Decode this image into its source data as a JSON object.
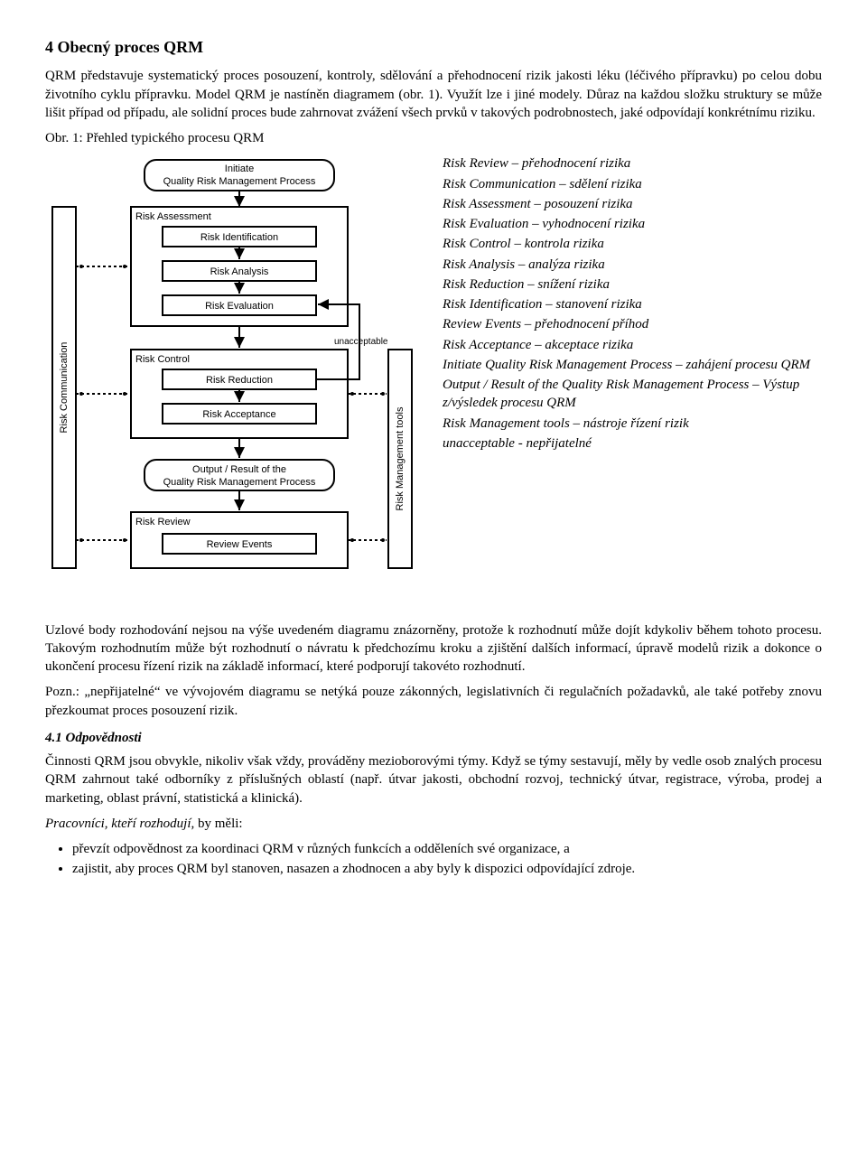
{
  "heading": "4 Obecný proces QRM",
  "para1": "QRM představuje systematický proces posouzení, kontroly, sdělování a přehodnocení rizik jakosti léku (léčivého přípravku) po celou dobu životního cyklu přípravku. Model QRM je nastíněn diagramem (obr. 1). Využít lze i jiné modely. Důraz na každou složku struktury se může lišit případ od případu, ale solidní proces bude zahrnovat zvážení všech prvků v takových podrobnostech, jaké odpovídají konkrétnímu riziku.",
  "fig_caption": "Obr. 1: Přehled typického procesu QRM",
  "diagram": {
    "type": "flowchart",
    "background_color": "#ffffff",
    "stroke": "#000000",
    "font_family": "Arial",
    "initiate": "Initiate\nQuality Risk Management Process",
    "left_label": "Risk Communication",
    "right_label": "Risk Management tools",
    "unacceptable": "unacceptable",
    "boxes": [
      {
        "section": "Risk Assessment",
        "items": [
          "Risk Identification",
          "Risk Analysis",
          "Risk Evaluation"
        ]
      },
      {
        "section": "Risk Control",
        "items": [
          "Risk Reduction",
          "Risk Acceptance"
        ]
      }
    ],
    "output": "Output / Result of the\nQuality Risk Management Process",
    "review": {
      "section": "Risk Review",
      "items": [
        "Review Events"
      ]
    }
  },
  "legend": [
    "Risk Review – přehodnocení rizika",
    "Risk Communication – sdělení rizika",
    "Risk Assessment – posouzení rizika",
    "Risk Evaluation – vyhodnocení rizika",
    "Risk Control – kontrola rizika",
    "Risk Analysis – analýza rizika",
    "Risk Reduction – snížení rizika",
    "Risk Identification – stanovení rizika",
    "Review Events – přehodnocení příhod",
    "Risk Acceptance – akceptace rizika",
    "Initiate Quality Risk Management Process – zahájení procesu QRM",
    "Output / Result of the Quality Risk Management Process – Výstup z/výsledek procesu QRM",
    "Risk Management tools – nástroje řízení rizik",
    "unacceptable - nepřijatelné"
  ],
  "para2": "Uzlové body rozhodování nejsou na výše uvedeném diagramu znázorněny, protože k rozhodnutí může dojít kdykoliv během tohoto procesu. Takovým rozhodnutím může být rozhodnutí o návratu k předchozímu kroku a zjištění dalších informací, úpravě modelů rizik a dokonce o ukončení procesu řízení rizik na základě informací, které podporují takovéto rozhodnutí.",
  "para3": "Pozn.: „nepřijatelné“ ve vývojovém diagramu se netýká pouze zákonných, legislativních či regulačních požadavků, ale také potřeby znovu přezkoumat proces posouzení rizik.",
  "sub41": "4.1 Odpovědnosti",
  "para4": "Činnosti QRM jsou obvykle, nikoliv však vždy, prováděny mezioborovými týmy. Když se týmy sestavují, měly by vedle osob znalých procesu QRM zahrnout také odborníky z příslušných oblastí (např. útvar jakosti, obchodní rozvoj, technický útvar, registrace, výroba, prodej a marketing, oblast právní, statistická a klinická).",
  "para5_intro": "Pracovníci, kteří rozhodují,",
  "para5_rest": " by měli:",
  "bullets": [
    "převzít odpovědnost za koordinaci QRM v různých funkcích a odděleních své organizace, a",
    "zajistit, aby proces QRM byl stanoven, nasazen a zhodnocen a aby byly k dispozici odpovídající zdroje."
  ]
}
